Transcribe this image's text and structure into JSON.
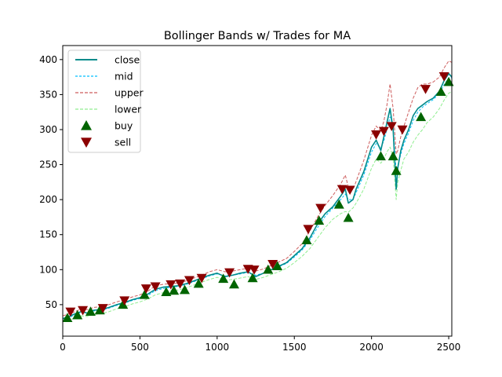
{
  "chart_data": {
    "type": "line",
    "title": "Bollinger Bands w/ Trades for MA",
    "xlabel": "",
    "ylabel": "",
    "xlim": [
      0,
      2520
    ],
    "ylim": [
      5,
      420
    ],
    "x_ticks": [
      0,
      500,
      1000,
      1500,
      2000,
      2500
    ],
    "y_ticks": [
      50,
      100,
      150,
      200,
      250,
      300,
      350,
      400
    ],
    "grid": false,
    "legend_position": "upper-left",
    "legend": [
      "close",
      "mid",
      "upper",
      "lower",
      "buy",
      "sell"
    ],
    "colors": {
      "close": "#008b8b",
      "mid": "#00bfff",
      "upper": "#cd5c5c",
      "lower": "#90ee90",
      "buy": "#006400",
      "sell": "#8b0000"
    },
    "series": [
      {
        "name": "close",
        "x": [
          0,
          40,
          80,
          120,
          160,
          200,
          250,
          300,
          350,
          400,
          450,
          500,
          550,
          600,
          650,
          700,
          750,
          800,
          850,
          900,
          950,
          1000,
          1050,
          1100,
          1150,
          1200,
          1250,
          1300,
          1350,
          1400,
          1450,
          1500,
          1550,
          1600,
          1650,
          1700,
          1750,
          1800,
          1830,
          1850,
          1880,
          1900,
          1950,
          2000,
          2030,
          2060,
          2080,
          2100,
          2120,
          2140,
          2160,
          2170,
          2190,
          2210,
          2240,
          2270,
          2300,
          2330,
          2360,
          2400,
          2440,
          2470,
          2500,
          2520
        ],
        "y": [
          30,
          33,
          37,
          40,
          38,
          42,
          43,
          46,
          50,
          53,
          57,
          60,
          65,
          72,
          75,
          76,
          77,
          80,
          84,
          88,
          92,
          95,
          90,
          92,
          95,
          97,
          90,
          95,
          100,
          105,
          110,
          120,
          130,
          145,
          165,
          180,
          190,
          205,
          215,
          195,
          200,
          215,
          240,
          275,
          285,
          270,
          290,
          310,
          330,
          300,
          215,
          245,
          270,
          285,
          300,
          320,
          330,
          335,
          340,
          345,
          355,
          370,
          380,
          375
        ]
      },
      {
        "name": "mid",
        "x": [
          0,
          40,
          80,
          120,
          160,
          200,
          250,
          300,
          350,
          400,
          450,
          500,
          550,
          600,
          650,
          700,
          750,
          800,
          850,
          900,
          950,
          1000,
          1050,
          1100,
          1150,
          1200,
          1250,
          1300,
          1350,
          1400,
          1450,
          1500,
          1550,
          1600,
          1650,
          1700,
          1750,
          1800,
          1830,
          1850,
          1880,
          1900,
          1950,
          2000,
          2030,
          2060,
          2080,
          2100,
          2120,
          2140,
          2160,
          2170,
          2190,
          2210,
          2240,
          2270,
          2300,
          2330,
          2360,
          2400,
          2440,
          2470,
          2500,
          2520
        ],
        "y": [
          30,
          32,
          35,
          39,
          38,
          41,
          42,
          45,
          49,
          52,
          56,
          59,
          63,
          70,
          73,
          75,
          76,
          79,
          83,
          87,
          91,
          94,
          91,
          92,
          94,
          96,
          92,
          95,
          99,
          104,
          109,
          118,
          128,
          142,
          160,
          176,
          188,
          200,
          208,
          200,
          200,
          210,
          235,
          268,
          280,
          274,
          284,
          300,
          318,
          305,
          240,
          248,
          265,
          280,
          295,
          313,
          325,
          332,
          337,
          343,
          352,
          364,
          374,
          374
        ]
      },
      {
        "name": "upper",
        "x": [
          0,
          40,
          80,
          120,
          160,
          200,
          250,
          300,
          350,
          400,
          450,
          500,
          550,
          600,
          650,
          700,
          750,
          800,
          850,
          900,
          950,
          1000,
          1050,
          1100,
          1150,
          1200,
          1250,
          1300,
          1350,
          1400,
          1450,
          1500,
          1550,
          1600,
          1650,
          1700,
          1750,
          1800,
          1830,
          1850,
          1880,
          1900,
          1950,
          2000,
          2030,
          2060,
          2080,
          2100,
          2120,
          2140,
          2160,
          2170,
          2190,
          2210,
          2240,
          2270,
          2300,
          2330,
          2360,
          2400,
          2440,
          2470,
          2500,
          2520
        ],
        "y": [
          34,
          37,
          40,
          44,
          43,
          46,
          47,
          50,
          54,
          57,
          61,
          64,
          69,
          77,
          79,
          80,
          81,
          84,
          88,
          92,
          97,
          100,
          97,
          98,
          100,
          102,
          98,
          101,
          106,
          111,
          116,
          126,
          137,
          155,
          175,
          192,
          206,
          222,
          235,
          218,
          214,
          226,
          256,
          292,
          305,
          298,
          312,
          335,
          365,
          330,
          265,
          270,
          290,
          305,
          325,
          345,
          360,
          365,
          365,
          368,
          375,
          388,
          398,
          396
        ]
      },
      {
        "name": "lower",
        "x": [
          0,
          40,
          80,
          120,
          160,
          200,
          250,
          300,
          350,
          400,
          450,
          500,
          550,
          600,
          650,
          700,
          750,
          800,
          850,
          900,
          950,
          1000,
          1050,
          1100,
          1150,
          1200,
          1250,
          1300,
          1350,
          1400,
          1450,
          1500,
          1550,
          1600,
          1650,
          1700,
          1750,
          1800,
          1830,
          1850,
          1880,
          1900,
          1950,
          2000,
          2030,
          2060,
          2080,
          2100,
          2120,
          2140,
          2160,
          2170,
          2190,
          2210,
          2240,
          2270,
          2300,
          2330,
          2360,
          2400,
          2440,
          2470,
          2500,
          2520
        ],
        "y": [
          26,
          28,
          31,
          34,
          33,
          36,
          37,
          40,
          44,
          47,
          51,
          54,
          58,
          64,
          67,
          70,
          71,
          74,
          78,
          82,
          86,
          89,
          85,
          86,
          88,
          90,
          86,
          89,
          93,
          97,
          102,
          110,
          119,
          130,
          145,
          160,
          172,
          180,
          183,
          182,
          188,
          195,
          215,
          245,
          258,
          252,
          258,
          268,
          275,
          260,
          200,
          225,
          242,
          258,
          268,
          282,
          292,
          300,
          310,
          318,
          330,
          342,
          352,
          354
        ]
      }
    ],
    "buy": {
      "x": [
        30,
        95,
        180,
        240,
        390,
        530,
        670,
        720,
        790,
        880,
        1040,
        1110,
        1230,
        1330,
        1390,
        1580,
        1660,
        1790,
        1850,
        2060,
        2140,
        2160,
        2320,
        2450,
        2500
      ],
      "y": [
        31,
        35,
        40,
        42,
        50,
        64,
        68,
        70,
        71,
        80,
        87,
        79,
        88,
        100,
        105,
        142,
        170,
        193,
        174,
        262,
        262,
        241,
        318,
        354,
        368
      ]
    },
    "sell": {
      "x": [
        50,
        130,
        260,
        400,
        540,
        600,
        700,
        760,
        820,
        900,
        1080,
        1200,
        1240,
        1360,
        1590,
        1670,
        1810,
        1860,
        2030,
        2080,
        2130,
        2200,
        2350,
        2470
      ],
      "y": [
        40,
        42,
        45,
        56,
        73,
        76,
        79,
        80,
        85,
        88,
        96,
        101,
        100,
        108,
        158,
        188,
        215,
        214,
        293,
        298,
        305,
        300,
        358,
        376
      ]
    }
  }
}
